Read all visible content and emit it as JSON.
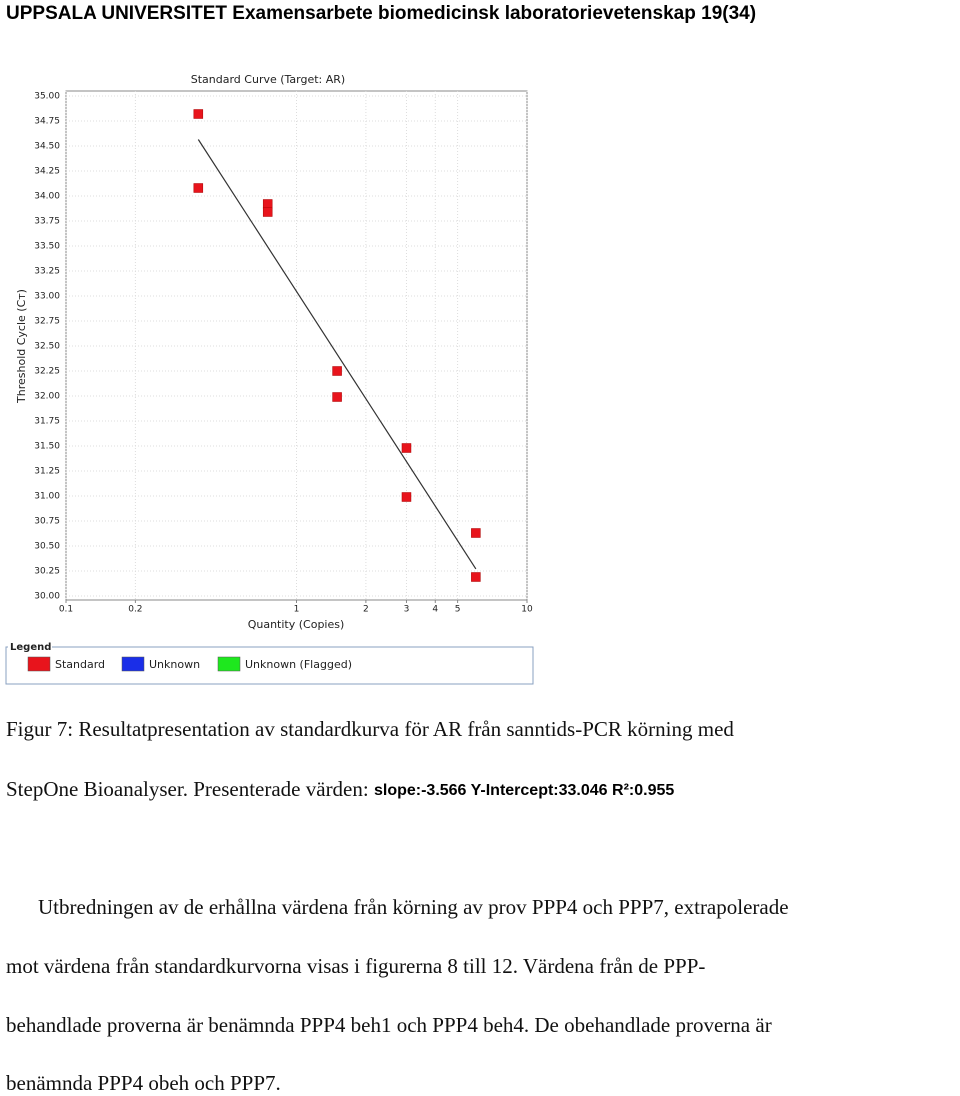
{
  "header": "UPPSALA UNIVERSITET Examensarbete biomedicinsk laboratorievetenskap 19(34)",
  "chart_data": {
    "type": "scatter",
    "title": "Standard Curve (Target: AR)",
    "x_label": "Quantity (Copies)",
    "y_label": "Threshold Cycle (Cт)",
    "x_scale": "log",
    "grid": true,
    "xlim": [
      0.1,
      10
    ],
    "xticks": [
      0.1,
      0.2,
      1,
      2,
      3,
      4,
      5,
      10
    ],
    "ylim": [
      30,
      35
    ],
    "yticks": [
      {
        "value": 30,
        "label": "30.00"
      },
      {
        "value": 30.25,
        "label": "30.25"
      },
      {
        "value": 30.5,
        "label": "30.50"
      },
      {
        "value": 30.75,
        "label": "30.75"
      },
      {
        "value": 31,
        "label": "31.00"
      },
      {
        "value": 31.25,
        "label": "31.25"
      },
      {
        "value": 31.5,
        "label": "31.50"
      },
      {
        "value": 31.75,
        "label": "31.75"
      },
      {
        "value": 32,
        "label": "32.00"
      },
      {
        "value": 32.25,
        "label": "32.25"
      },
      {
        "value": 32.5,
        "label": "32.50"
      },
      {
        "value": 32.75,
        "label": "32.75"
      },
      {
        "value": 33,
        "label": "33.00"
      },
      {
        "value": 33.25,
        "label": "33.25"
      },
      {
        "value": 33.5,
        "label": "33.50"
      },
      {
        "value": 33.75,
        "label": "33.75"
      },
      {
        "value": 34,
        "label": "34.00"
      },
      {
        "value": 34.25,
        "label": "34.25"
      },
      {
        "value": 34.5,
        "label": "34.50"
      },
      {
        "value": 34.75,
        "label": "34.75"
      },
      {
        "value": 35,
        "label": "35.00"
      }
    ],
    "series": [
      {
        "name": "Standard",
        "color": "#e8141c",
        "x": [
          0.375,
          0.375,
          0.75,
          0.75,
          1.5,
          1.5,
          3,
          3,
          6,
          6
        ],
        "values": [
          34.82,
          34.08,
          33.92,
          33.84,
          32.25,
          31.99,
          31.48,
          30.99,
          30.63,
          30.19
        ]
      },
      {
        "name": "Unknown",
        "color": "#1a2ee8",
        "x": [],
        "values": []
      },
      {
        "name": "Unknown (Flagged)",
        "color": "#1ee81e",
        "x": [],
        "values": []
      }
    ],
    "legend_title": "Legend",
    "trendline": {
      "slope": -3.566,
      "intercept": 33.046
    }
  },
  "caption": {
    "line1": "Figur 7: Resultatpresentation av standardkurva för AR från sanntids-PCR körning med",
    "line2": "StepOne Bioanalyser. Presenterade värden: ",
    "stats": "slope:-3.566 Y-Intercept:33.046 R²:0.955"
  },
  "paragraph": [
    "Utbredningen av de erhållna värdena från körning av prov PPP4 och PPP7, extrapolerade",
    "mot värdena från standardkurvorna visas i figurerna 8 till 12. Värdena från de PPP-",
    "behandlade proverna är benämnda PPP4 beh1 och PPP4 beh4. De obehandlade proverna är",
    "benämnda PPP4 obeh och PPP7."
  ]
}
